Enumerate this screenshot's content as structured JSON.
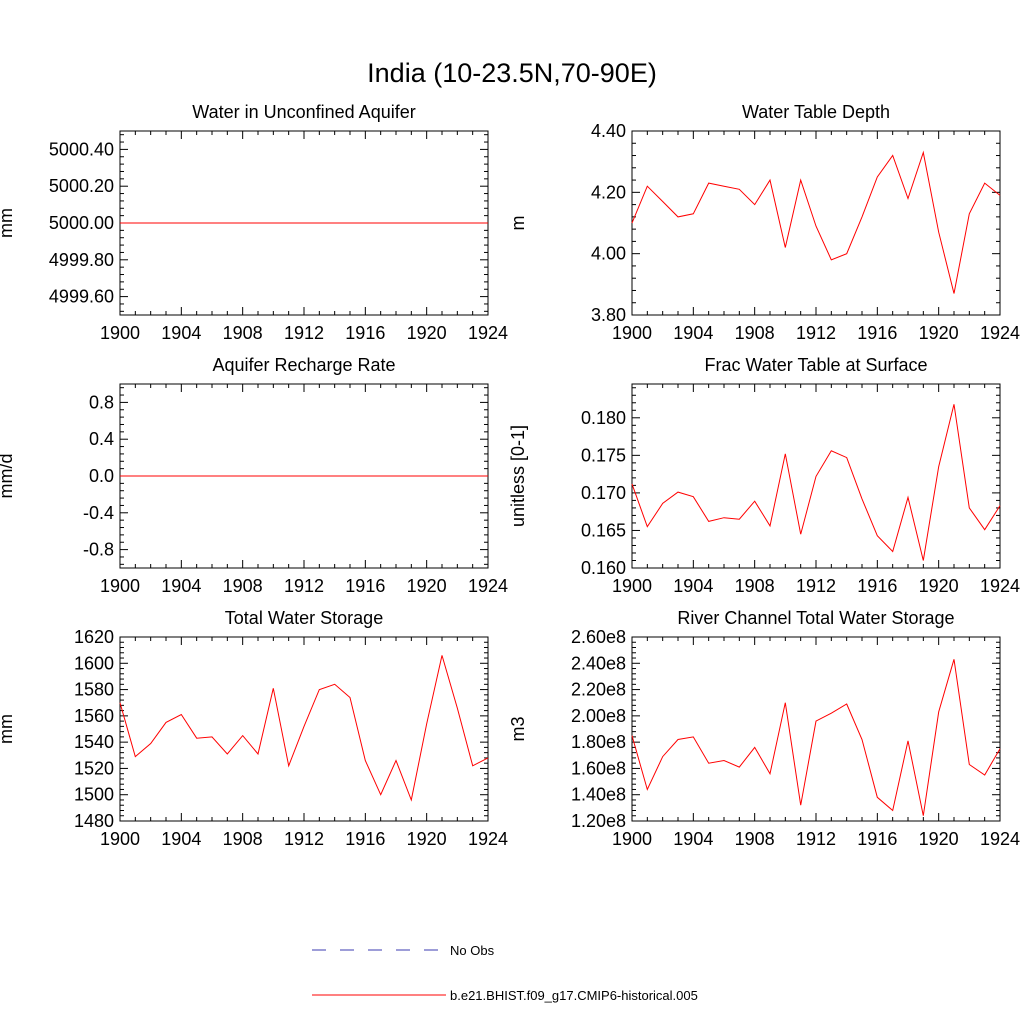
{
  "figure_title": "India (10-23.5N,70-90E)",
  "legend": [
    {
      "label": "No Obs",
      "color": "#3b3bb0",
      "dash": true
    },
    {
      "label": "b.e21.BHIST.f09_g17.CMIP6-historical.005",
      "color": "#ff0000",
      "dash": false
    }
  ],
  "chart_data": [
    {
      "type": "line",
      "title": "Water in Unconfined Aquifer",
      "ylabel": "mm",
      "xlim": [
        1900,
        1924
      ],
      "ylim": [
        4999.5,
        5000.5
      ],
      "xticks": [
        1900,
        1904,
        1908,
        1912,
        1916,
        1920,
        1924
      ],
      "yticks": [
        4999.6,
        4999.8,
        5000.0,
        5000.2,
        5000.4
      ],
      "ytick_labels": [
        "4999.60",
        "4999.80",
        "5000.00",
        "5000.20",
        "5000.40"
      ],
      "series": [
        {
          "color": "#ff0000",
          "x": [
            1900,
            1901,
            1902,
            1903,
            1904,
            1905,
            1906,
            1907,
            1908,
            1909,
            1910,
            1911,
            1912,
            1913,
            1914,
            1915,
            1916,
            1917,
            1918,
            1919,
            1920,
            1921,
            1922,
            1923,
            1924
          ],
          "y": [
            5000,
            5000,
            5000,
            5000,
            5000,
            5000,
            5000,
            5000,
            5000,
            5000,
            5000,
            5000,
            5000,
            5000,
            5000,
            5000,
            5000,
            5000,
            5000,
            5000,
            5000,
            5000,
            5000,
            5000,
            5000
          ]
        }
      ]
    },
    {
      "type": "line",
      "title": "Water Table Depth",
      "ylabel": "m",
      "xlim": [
        1900,
        1924
      ],
      "ylim": [
        3.8,
        4.4
      ],
      "xticks": [
        1900,
        1904,
        1908,
        1912,
        1916,
        1920,
        1924
      ],
      "yticks": [
        3.8,
        4.0,
        4.2,
        4.4
      ],
      "ytick_labels": [
        "3.80",
        "4.00",
        "4.20",
        "4.40"
      ],
      "series": [
        {
          "color": "#ff0000",
          "x": [
            1900,
            1901,
            1902,
            1903,
            1904,
            1905,
            1906,
            1907,
            1908,
            1909,
            1910,
            1911,
            1912,
            1913,
            1914,
            1915,
            1916,
            1917,
            1918,
            1919,
            1920,
            1921,
            1922,
            1923,
            1924
          ],
          "y": [
            4.1,
            4.22,
            4.17,
            4.12,
            4.13,
            4.23,
            4.22,
            4.21,
            4.16,
            4.24,
            4.02,
            4.24,
            4.09,
            3.98,
            4.0,
            4.12,
            4.25,
            4.32,
            4.18,
            4.33,
            4.07,
            3.87,
            4.13,
            4.23,
            4.19
          ]
        }
      ]
    },
    {
      "type": "line",
      "title": "Aquifer Recharge Rate",
      "ylabel": "mm/d",
      "xlim": [
        1900,
        1924
      ],
      "ylim": [
        -1.0,
        1.0
      ],
      "xticks": [
        1900,
        1904,
        1908,
        1912,
        1916,
        1920,
        1924
      ],
      "yticks": [
        -0.8,
        -0.4,
        0.0,
        0.4,
        0.8
      ],
      "ytick_labels": [
        "-0.8",
        "-0.4",
        "0.0",
        "0.4",
        "0.8"
      ],
      "series": [
        {
          "color": "#ff0000",
          "x": [
            1900,
            1901,
            1902,
            1903,
            1904,
            1905,
            1906,
            1907,
            1908,
            1909,
            1910,
            1911,
            1912,
            1913,
            1914,
            1915,
            1916,
            1917,
            1918,
            1919,
            1920,
            1921,
            1922,
            1923,
            1924
          ],
          "y": [
            0,
            0,
            0,
            0,
            0,
            0,
            0,
            0,
            0,
            0,
            0,
            0,
            0,
            0,
            0,
            0,
            0,
            0,
            0,
            0,
            0,
            0,
            0,
            0,
            0
          ]
        }
      ]
    },
    {
      "type": "line",
      "title": "Frac Water Table at Surface",
      "ylabel": "unitless [0-1]",
      "xlim": [
        1900,
        1924
      ],
      "ylim": [
        0.16,
        0.1845
      ],
      "xticks": [
        1900,
        1904,
        1908,
        1912,
        1916,
        1920,
        1924
      ],
      "yticks": [
        0.16,
        0.165,
        0.17,
        0.175,
        0.18
      ],
      "ytick_labels": [
        "0.160",
        "0.165",
        "0.170",
        "0.175",
        "0.180"
      ],
      "series": [
        {
          "color": "#ff0000",
          "x": [
            1900,
            1901,
            1902,
            1903,
            1904,
            1905,
            1906,
            1907,
            1908,
            1909,
            1910,
            1911,
            1912,
            1913,
            1914,
            1915,
            1916,
            1917,
            1918,
            1919,
            1920,
            1921,
            1922,
            1923,
            1924
          ],
          "y": [
            0.1712,
            0.1655,
            0.1686,
            0.1701,
            0.1695,
            0.1662,
            0.1667,
            0.1665,
            0.1689,
            0.1656,
            0.1752,
            0.1645,
            0.1722,
            0.1756,
            0.1747,
            0.1692,
            0.1643,
            0.1622,
            0.1694,
            0.161,
            0.1735,
            0.1818,
            0.168,
            0.1651,
            0.1683
          ]
        }
      ]
    },
    {
      "type": "line",
      "title": "Total Water Storage",
      "ylabel": "mm",
      "xlim": [
        1900,
        1924
      ],
      "ylim": [
        1480,
        1620
      ],
      "xticks": [
        1900,
        1904,
        1908,
        1912,
        1916,
        1920,
        1924
      ],
      "yticks": [
        1480,
        1500,
        1520,
        1540,
        1560,
        1580,
        1600,
        1620
      ],
      "ytick_labels": [
        "1480",
        "1500",
        "1520",
        "1540",
        "1560",
        "1580",
        "1600",
        "1620"
      ],
      "series": [
        {
          "color": "#ff0000",
          "x": [
            1900,
            1901,
            1902,
            1903,
            1904,
            1905,
            1906,
            1907,
            1908,
            1909,
            1910,
            1911,
            1912,
            1913,
            1914,
            1915,
            1916,
            1917,
            1918,
            1919,
            1920,
            1921,
            1922,
            1923,
            1924
          ],
          "y": [
            1570,
            1529,
            1539,
            1555,
            1561,
            1543,
            1544,
            1531,
            1545,
            1531,
            1581,
            1522,
            1552,
            1580,
            1584,
            1574,
            1526,
            1500,
            1526,
            1496,
            1554,
            1606,
            1566,
            1522,
            1528
          ]
        }
      ]
    },
    {
      "type": "line",
      "title": "River Channel Total Water Storage",
      "ylabel": "m3",
      "xlim": [
        1900,
        1924
      ],
      "ylim": [
        120000000,
        260000000
      ],
      "xticks": [
        1900,
        1904,
        1908,
        1912,
        1916,
        1920,
        1924
      ],
      "yticks": [
        120000000,
        140000000,
        160000000,
        180000000,
        200000000,
        220000000,
        240000000,
        260000000
      ],
      "ytick_labels": [
        "1.20e8",
        "1.40e8",
        "1.60e8",
        "1.80e8",
        "2.00e8",
        "2.20e8",
        "2.40e8",
        "2.60e8"
      ],
      "series": [
        {
          "color": "#ff0000",
          "x": [
            1900,
            1901,
            1902,
            1903,
            1904,
            1905,
            1906,
            1907,
            1908,
            1909,
            1910,
            1911,
            1912,
            1913,
            1914,
            1915,
            1916,
            1917,
            1918,
            1919,
            1920,
            1921,
            1922,
            1923,
            1924
          ],
          "y": [
            185000000,
            144000000,
            169000000,
            182000000,
            184000000,
            164000000,
            166000000,
            161000000,
            176000000,
            156000000,
            210000000,
            132000000,
            196000000,
            202000000,
            209000000,
            182000000,
            138000000,
            128000000,
            181000000,
            124000000,
            203000000,
            243000000,
            163000000,
            155000000,
            175000000
          ]
        }
      ]
    }
  ]
}
